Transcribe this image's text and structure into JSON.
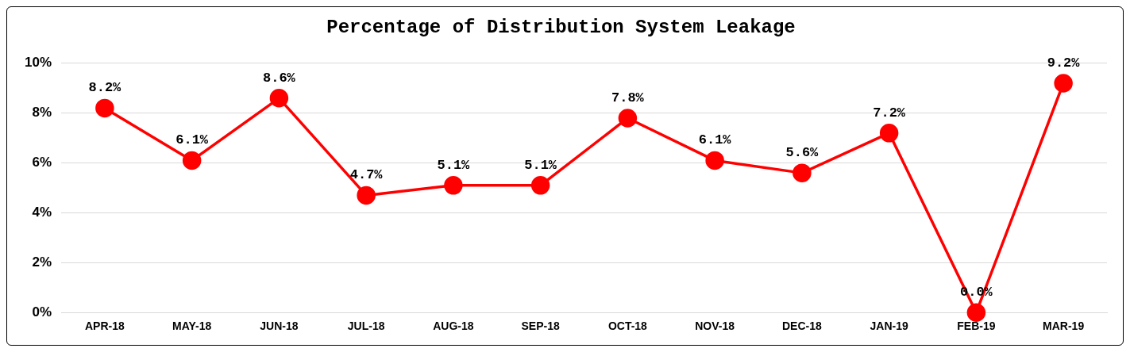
{
  "chart_data": {
    "type": "line",
    "title": "Percentage of Distribution System Leakage",
    "categories": [
      "APR-18",
      "MAY-18",
      "JUN-18",
      "JUL-18",
      "AUG-18",
      "SEP-18",
      "OCT-18",
      "NOV-18",
      "DEC-18",
      "JAN-19",
      "FEB-19",
      "MAR-19"
    ],
    "series": [
      {
        "color": "#ff0000",
        "values": [
          8.2,
          6.1,
          8.6,
          4.7,
          5.1,
          5.1,
          7.8,
          6.1,
          5.6,
          7.2,
          0.0,
          9.2
        ],
        "value_labels": [
          "8.2%",
          "6.1%",
          "8.6%",
          "4.7%",
          "5.1%",
          "5.1%",
          "7.8%",
          "6.1%",
          "5.6%",
          "7.2%",
          "0.0%",
          "9.2%"
        ]
      }
    ],
    "ylim": [
      0,
      10
    ],
    "yticks": [
      {
        "value": 0,
        "label": "0%"
      },
      {
        "value": 2,
        "label": "2%"
      },
      {
        "value": 4,
        "label": "4%"
      },
      {
        "value": 6,
        "label": "6%"
      },
      {
        "value": 8,
        "label": "8%"
      },
      {
        "value": 10,
        "label": "10%"
      }
    ],
    "grid": "y",
    "legend": false,
    "marker": "circle",
    "line_style": "solid"
  }
}
